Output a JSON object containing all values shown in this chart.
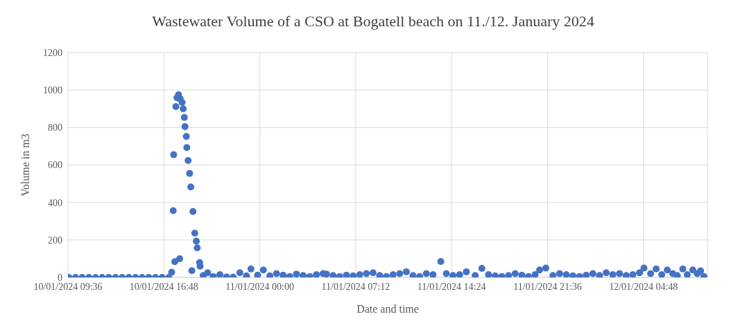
{
  "chart_data": {
    "type": "scatter",
    "title": "Wastewater Volume of a CSO at Bogatell beach on 11./12. January 2024",
    "xlabel": "Date and time",
    "ylabel": "Volume in m3",
    "x": [
      "2024-01-10T09:40",
      "2024-01-10T10:10",
      "2024-01-10T10:40",
      "2024-01-10T11:10",
      "2024-01-10T11:40",
      "2024-01-10T12:10",
      "2024-01-10T12:40",
      "2024-01-10T13:10",
      "2024-01-10T13:40",
      "2024-01-10T14:10",
      "2024-01-10T14:40",
      "2024-01-10T15:10",
      "2024-01-10T15:40",
      "2024-01-10T16:10",
      "2024-01-10T16:40",
      "2024-01-10T17:10",
      "2024-01-10T17:23",
      "2024-01-10T17:30",
      "2024-01-10T17:32",
      "2024-01-10T17:37",
      "2024-01-10T17:42",
      "2024-01-10T17:47",
      "2024-01-10T17:54",
      "2024-01-10T17:59",
      "2024-01-10T18:01",
      "2024-01-10T18:10",
      "2024-01-10T18:15",
      "2024-01-10T18:20",
      "2024-01-10T18:23",
      "2024-01-10T18:29",
      "2024-01-10T18:31",
      "2024-01-10T18:37",
      "2024-01-10T18:44",
      "2024-01-10T18:49",
      "2024-01-10T18:54",
      "2024-01-10T18:59",
      "2024-01-10T19:07",
      "2024-01-10T19:14",
      "2024-01-10T19:18",
      "2024-01-10T19:29",
      "2024-01-10T19:31",
      "2024-01-10T19:45",
      "2024-01-10T20:05",
      "2024-01-10T20:30",
      "2024-01-10T21:00",
      "2024-01-10T21:30",
      "2024-01-10T22:00",
      "2024-01-10T22:30",
      "2024-01-10T23:00",
      "2024-01-10T23:20",
      "2024-01-10T23:50",
      "2024-01-11T00:16",
      "2024-01-11T00:45",
      "2024-01-11T01:15",
      "2024-01-11T01:45",
      "2024-01-11T02:15",
      "2024-01-11T02:45",
      "2024-01-11T03:15",
      "2024-01-11T03:45",
      "2024-01-11T04:15",
      "2024-01-11T04:45",
      "2024-01-11T05:00",
      "2024-01-11T05:30",
      "2024-01-11T06:00",
      "2024-01-11T06:30",
      "2024-01-11T07:00",
      "2024-01-11T07:30",
      "2024-01-11T08:00",
      "2024-01-11T08:30",
      "2024-01-11T09:00",
      "2024-01-11T09:30",
      "2024-01-11T10:00",
      "2024-01-11T10:30",
      "2024-01-11T11:00",
      "2024-01-11T11:30",
      "2024-01-11T12:00",
      "2024-01-11T12:30",
      "2024-01-11T13:00",
      "2024-01-11T13:35",
      "2024-01-11T14:00",
      "2024-01-11T14:30",
      "2024-01-11T15:00",
      "2024-01-11T15:30",
      "2024-01-11T16:10",
      "2024-01-11T16:40",
      "2024-01-11T17:10",
      "2024-01-11T17:40",
      "2024-01-11T18:10",
      "2024-01-11T18:40",
      "2024-01-11T19:10",
      "2024-01-11T19:40",
      "2024-01-11T20:10",
      "2024-01-11T20:40",
      "2024-01-11T21:00",
      "2024-01-11T21:28",
      "2024-01-11T22:00",
      "2024-01-11T22:30",
      "2024-01-11T23:00",
      "2024-01-11T23:30",
      "2024-01-12T00:00",
      "2024-01-12T00:30",
      "2024-01-12T01:00",
      "2024-01-12T01:30",
      "2024-01-12T02:00",
      "2024-01-12T02:30",
      "2024-01-12T03:00",
      "2024-01-12T03:30",
      "2024-01-12T04:00",
      "2024-01-12T04:30",
      "2024-01-12T04:50",
      "2024-01-12T05:20",
      "2024-01-12T05:45",
      "2024-01-12T06:10",
      "2024-01-12T06:35",
      "2024-01-12T07:00",
      "2024-01-12T07:20",
      "2024-01-12T07:45",
      "2024-01-12T08:05",
      "2024-01-12T08:30",
      "2024-01-12T08:50",
      "2024-01-12T09:05",
      "2024-01-12T09:20"
    ],
    "values": [
      0,
      0,
      0,
      0,
      0,
      0,
      0,
      0,
      0,
      0,
      0,
      0,
      0,
      0,
      0,
      0,
      28,
      356,
      655,
      84,
      912,
      959,
      975,
      100,
      953,
      934,
      900,
      854,
      805,
      752,
      693,
      624,
      555,
      483,
      36,
      352,
      236,
      194,
      158,
      79,
      60,
      10,
      25,
      5,
      15,
      3,
      2,
      25,
      8,
      45,
      12,
      40,
      8,
      20,
      12,
      5,
      18,
      10,
      5,
      15,
      20,
      18,
      10,
      5,
      12,
      8,
      15,
      20,
      25,
      10,
      5,
      15,
      20,
      30,
      10,
      5,
      20,
      15,
      85,
      20,
      10,
      15,
      30,
      10,
      48,
      15,
      8,
      5,
      10,
      20,
      12,
      5,
      15,
      40,
      50,
      10,
      20,
      15,
      8,
      5,
      12,
      20,
      10,
      25,
      15,
      20,
      10,
      15,
      25,
      50,
      20,
      45,
      15,
      40,
      20,
      10,
      45,
      15,
      40,
      20,
      35,
      5
    ],
    "xlim": [
      "2024-01-10T09:36",
      "2024-01-12T09:36"
    ],
    "xticks": [
      {
        "value": "2024-01-10T09:36",
        "label": "10/01/2024 09:36"
      },
      {
        "value": "2024-01-10T16:48",
        "label": "10/01/2024 16:48"
      },
      {
        "value": "2024-01-11T00:00",
        "label": "11/01/2024 00:00"
      },
      {
        "value": "2024-01-11T07:12",
        "label": "11/01/2024 07:12"
      },
      {
        "value": "2024-01-11T14:24",
        "label": "11/01/2024 14:24"
      },
      {
        "value": "2024-01-11T21:36",
        "label": "11/01/2024 21:36"
      },
      {
        "value": "2024-01-12T04:48",
        "label": "12/01/2024 04:48"
      }
    ],
    "ylim": [
      0,
      1200
    ],
    "yticks": [
      0,
      200,
      400,
      600,
      800,
      1000,
      1200
    ],
    "color": "#4472c4",
    "grid": true,
    "marker": "circle"
  }
}
